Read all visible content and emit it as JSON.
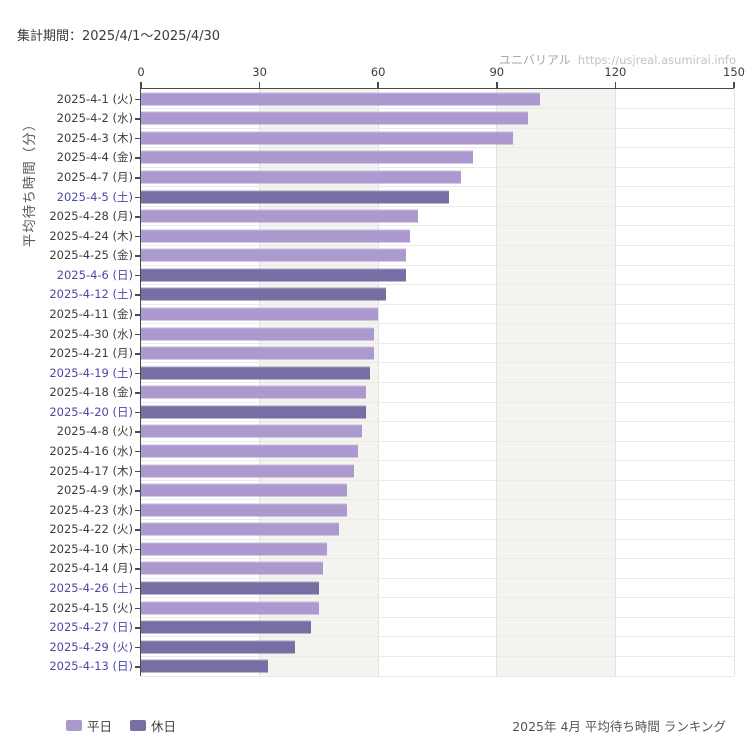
{
  "header": {
    "period_label": "集計期間：2025/4/1～2025/4/30",
    "watermark_brand": "ユニバリアル",
    "watermark_url": "https://usjreal.asumirai.info"
  },
  "chart_data": {
    "type": "bar",
    "orientation": "horizontal",
    "title": "2025年 4月 平均待ち時間 ランキング",
    "ylabel": "平均待ち時間（分）",
    "xlim": [
      0,
      150
    ],
    "xticks": [
      0,
      30,
      60,
      90,
      120,
      150
    ],
    "grid": true,
    "shaded_bands": [
      [
        30,
        60
      ],
      [
        90,
        120
      ]
    ],
    "legend_position": "bottom-left",
    "legend": [
      {
        "key": "weekday",
        "label": "平日",
        "color": "#ac99d0"
      },
      {
        "key": "holiday",
        "label": "休日",
        "color": "#786ea4"
      }
    ],
    "label_colors": {
      "weekday": "#3d3d3d",
      "holiday": "#4a49a5"
    },
    "bars": [
      {
        "label": "2025-4-1 (火)",
        "value": 101,
        "type": "weekday"
      },
      {
        "label": "2025-4-2 (水)",
        "value": 98,
        "type": "weekday"
      },
      {
        "label": "2025-4-3 (木)",
        "value": 94,
        "type": "weekday"
      },
      {
        "label": "2025-4-4 (金)",
        "value": 84,
        "type": "weekday"
      },
      {
        "label": "2025-4-7 (月)",
        "value": 81,
        "type": "weekday"
      },
      {
        "label": "2025-4-5 (土)",
        "value": 78,
        "type": "holiday"
      },
      {
        "label": "2025-4-28 (月)",
        "value": 70,
        "type": "weekday"
      },
      {
        "label": "2025-4-24 (木)",
        "value": 68,
        "type": "weekday"
      },
      {
        "label": "2025-4-25 (金)",
        "value": 67,
        "type": "weekday"
      },
      {
        "label": "2025-4-6 (日)",
        "value": 67,
        "type": "holiday"
      },
      {
        "label": "2025-4-12 (土)",
        "value": 62,
        "type": "holiday"
      },
      {
        "label": "2025-4-11 (金)",
        "value": 60,
        "type": "weekday"
      },
      {
        "label": "2025-4-30 (水)",
        "value": 59,
        "type": "weekday"
      },
      {
        "label": "2025-4-21 (月)",
        "value": 59,
        "type": "weekday"
      },
      {
        "label": "2025-4-19 (土)",
        "value": 58,
        "type": "holiday"
      },
      {
        "label": "2025-4-18 (金)",
        "value": 57,
        "type": "weekday"
      },
      {
        "label": "2025-4-20 (日)",
        "value": 57,
        "type": "holiday"
      },
      {
        "label": "2025-4-8 (火)",
        "value": 56,
        "type": "weekday"
      },
      {
        "label": "2025-4-16 (水)",
        "value": 55,
        "type": "weekday"
      },
      {
        "label": "2025-4-17 (木)",
        "value": 54,
        "type": "weekday"
      },
      {
        "label": "2025-4-9 (水)",
        "value": 52,
        "type": "weekday"
      },
      {
        "label": "2025-4-23 (水)",
        "value": 52,
        "type": "weekday"
      },
      {
        "label": "2025-4-22 (火)",
        "value": 50,
        "type": "weekday"
      },
      {
        "label": "2025-4-10 (木)",
        "value": 47,
        "type": "weekday"
      },
      {
        "label": "2025-4-14 (月)",
        "value": 46,
        "type": "weekday"
      },
      {
        "label": "2025-4-26 (土)",
        "value": 45,
        "type": "holiday"
      },
      {
        "label": "2025-4-15 (火)",
        "value": 45,
        "type": "weekday"
      },
      {
        "label": "2025-4-27 (日)",
        "value": 43,
        "type": "holiday"
      },
      {
        "label": "2025-4-29 (火)",
        "value": 39,
        "type": "holiday"
      },
      {
        "label": "2025-4-13 (日)",
        "value": 32,
        "type": "holiday"
      }
    ]
  },
  "footer": {
    "title": "2025年 4月 平均待ち時間 ランキング"
  }
}
